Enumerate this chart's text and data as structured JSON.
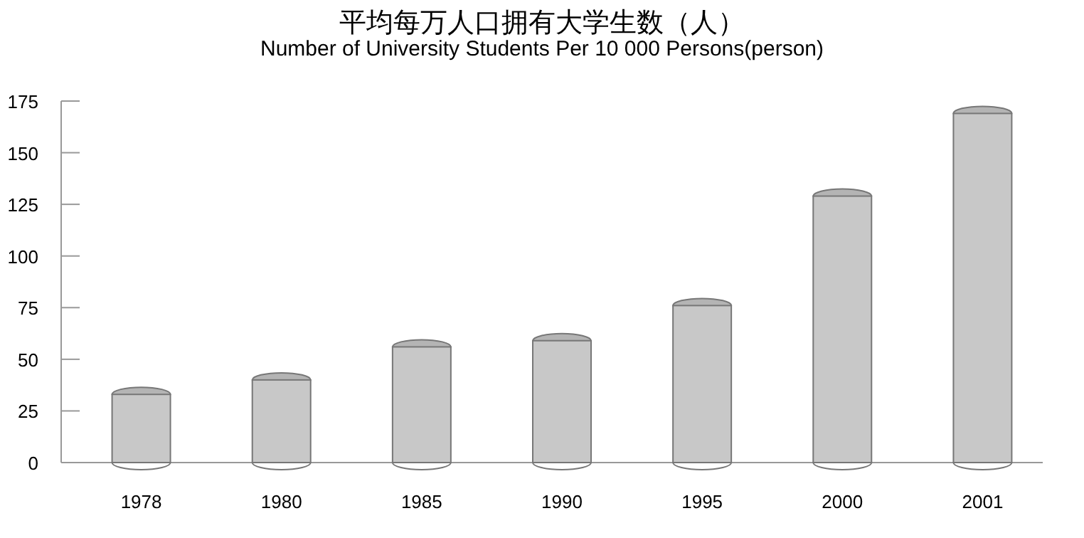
{
  "chart_data": {
    "type": "bar",
    "title": "平均每万人口拥有大学生数（人）",
    "subtitle": "Number of University Students Per 10 000 Persons(person)",
    "categories": [
      "1978",
      "1980",
      "1985",
      "1990",
      "1995",
      "2000",
      "2001"
    ],
    "values": [
      33,
      40,
      56,
      59,
      76,
      129,
      169
    ],
    "color": "#c8c8c8",
    "ylim": [
      0,
      175
    ],
    "yticks": [
      0,
      25,
      50,
      75,
      100,
      125,
      150,
      175
    ],
    "grid": false
  }
}
